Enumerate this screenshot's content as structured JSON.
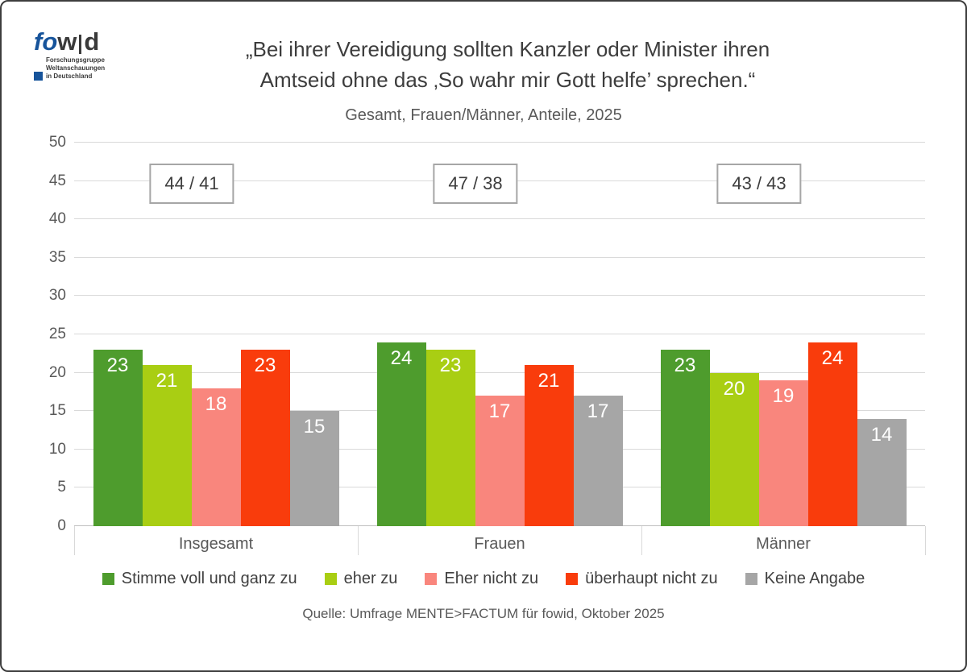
{
  "logo": {
    "fo": "fo",
    "w": "w",
    "d": "d",
    "sub_lines": [
      "Forschungsgruppe",
      "Weltanschauungen",
      "in Deutschland"
    ]
  },
  "header": {
    "title_line1": "„Bei ihrer Vereidigung sollten Kanzler oder Minister ihren",
    "title_line2": "Amtseid ohne das ‚So wahr mir Gott helfe’ sprechen.“",
    "subtitle": "Gesamt, Frauen/Männer, Anteile, 2025"
  },
  "chart_data": {
    "type": "bar",
    "title": "„Bei ihrer Vereidigung sollten Kanzler oder Minister ihren Amtseid ohne das ‚So wahr mir Gott helfe’ sprechen.“",
    "subtitle": "Gesamt, Frauen/Männer, Anteile, 2025",
    "categories": [
      "Insgesamt",
      "Frauen",
      "Männer"
    ],
    "series": [
      {
        "name": "Stimme voll und ganz zu",
        "color": "#4e9c2d",
        "values": [
          23,
          24,
          23
        ]
      },
      {
        "name": "eher zu",
        "color": "#a9ce13",
        "values": [
          21,
          23,
          20
        ]
      },
      {
        "name": "Eher nicht zu",
        "color": "#f9867d",
        "values": [
          18,
          17,
          19
        ]
      },
      {
        "name": "überhaupt nicht zu",
        "color": "#f93c0c",
        "values": [
          23,
          21,
          24
        ]
      },
      {
        "name": "Keine Angabe",
        "color": "#a6a6a6",
        "values": [
          15,
          17,
          14
        ]
      }
    ],
    "annotations": [
      "44 / 41",
      "47 / 38",
      "43 / 43"
    ],
    "xlabel": "",
    "ylabel": "",
    "ylim": [
      0,
      50
    ],
    "ytick_step": 5,
    "grid": true,
    "legend_position": "bottom"
  },
  "footer": {
    "source": "Quelle: Umfrage MENTE>FACTUM für fowid, Oktober 2025"
  }
}
